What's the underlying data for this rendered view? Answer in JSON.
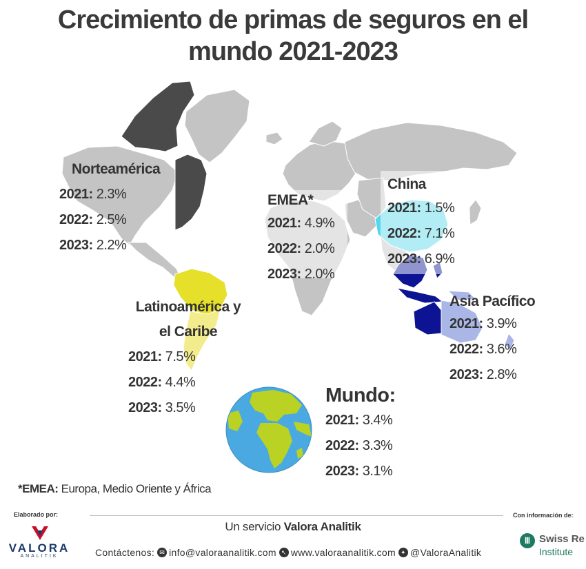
{
  "title_line1": "Crecimiento de primas de seguros en el",
  "title_line2": "mundo 2021-2023",
  "colors": {
    "land_grey": "#c4c4c4",
    "na_dark": "#4a4a4a",
    "latam": "#f2ec8c",
    "latam_bright": "#e6e02a",
    "china": "#56d8ec",
    "asia_dark": "#0d1494",
    "asia_light": "#a9b6e6",
    "ocean": "#4aa9e0",
    "globe_land": "#b9d223",
    "text": "#333333"
  },
  "regions": {
    "na": {
      "name": "Norteamérica",
      "rows": [
        {
          "year": "2021:",
          "value": "2.3%"
        },
        {
          "year": "2022:",
          "value": "2.5%"
        },
        {
          "year": "2023:",
          "value": "2.2%"
        }
      ]
    },
    "emea": {
      "name": "EMEA*",
      "rows": [
        {
          "year": "2021:",
          "value": "4.9%"
        },
        {
          "year": "2022:",
          "value": "2.0%"
        },
        {
          "year": "2023:",
          "value": "2.0%"
        }
      ]
    },
    "china": {
      "name": "China",
      "rows": [
        {
          "year": "2021:",
          "value": "1.5%"
        },
        {
          "year": "2022:",
          "value": "7.1%"
        },
        {
          "year": "2023:",
          "value": "6.9%"
        }
      ]
    },
    "apac": {
      "name": "Asia Pacífico",
      "rows": [
        {
          "year": "2021:",
          "value": "3.9%"
        },
        {
          "year": "2022:",
          "value": "3.6%"
        },
        {
          "year": "2023:",
          "value": "2.8%"
        }
      ]
    },
    "latam": {
      "name_line1": "Latinoamérica y",
      "name_line2": "el Caribe",
      "rows": [
        {
          "year": "2021:",
          "value": "7.5%"
        },
        {
          "year": "2022:",
          "value": "4.4%"
        },
        {
          "year": "2023:",
          "value": "3.5%"
        }
      ]
    },
    "world": {
      "name": "Mundo:",
      "rows": [
        {
          "year": "2021:",
          "value": "3.4%"
        },
        {
          "year": "2022:",
          "value": "3.3%"
        },
        {
          "year": "2023:",
          "value": "3.1%"
        }
      ]
    }
  },
  "footnote": {
    "label": "*EMEA:",
    "text": "Europa, Medio Oriente y África"
  },
  "footer": {
    "made_by": "Elaborado por:",
    "info_from": "Con información de:",
    "service_prefix": "Un servicio",
    "service_brand": "Valora Analitik",
    "contact_label": "Contáctenos:",
    "email": "info@valoraanalitik.com",
    "website": "www.valoraanalitik.com",
    "social": "@ValoraAnalitik",
    "logo_name": "VALORA",
    "logo_sub": "ANALITIK",
    "partner_name": "Swiss Re",
    "partner_sub": "Institute"
  }
}
